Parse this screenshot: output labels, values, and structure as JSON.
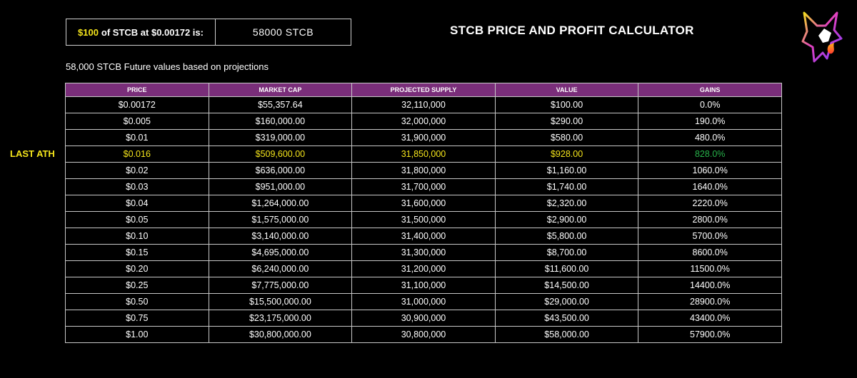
{
  "calculator": {
    "amount": "$100",
    "label_text": "of STCB at $0.00172 is:",
    "result": "58000 STCB"
  },
  "page_title": "STCB PRICE AND PROFIT CALCULATOR",
  "subtitle": "58,000 STCB Future values based on projections",
  "ath_label": "LAST ATH",
  "colors": {
    "header_bg": "#7a2e7a",
    "highlight": "#f5e51b",
    "gain": "#27b24a",
    "background": "#000000"
  },
  "logo": {
    "icon": "wolf-logo-icon"
  },
  "table": {
    "headers": [
      "PRICE",
      "MARKET CAP",
      "PROJECTED SUPPLY",
      "VALUE",
      "GAINS"
    ],
    "rows": [
      [
        "$0.00172",
        "$55,357.64",
        "32,110,000",
        "$100.00",
        "0.0%"
      ],
      [
        "$0.005",
        "$160,000.00",
        "32,000,000",
        "$290.00",
        "190.0%"
      ],
      [
        "$0.01",
        "$319,000.00",
        "31,900,000",
        "$580.00",
        "480.0%"
      ],
      [
        "$0.016",
        "$509,600.00",
        "31,850,000",
        "$928.00",
        "828.0%"
      ],
      [
        "$0.02",
        "$636,000.00",
        "31,800,000",
        "$1,160.00",
        "1060.0%"
      ],
      [
        "$0.03",
        "$951,000.00",
        "31,700,000",
        "$1,740.00",
        "1640.0%"
      ],
      [
        "$0.04",
        "$1,264,000.00",
        "31,600,000",
        "$2,320.00",
        "2220.0%"
      ],
      [
        "$0.05",
        "$1,575,000.00",
        "31,500,000",
        "$2,900.00",
        "2800.0%"
      ],
      [
        "$0.10",
        "$3,140,000.00",
        "31,400,000",
        "$5,800.00",
        "5700.0%"
      ],
      [
        "$0.15",
        "$4,695,000.00",
        "31,300,000",
        "$8,700.00",
        "8600.0%"
      ],
      [
        "$0.20",
        "$6,240,000.00",
        "31,200,000",
        "$11,600.00",
        "11500.0%"
      ],
      [
        "$0.25",
        "$7,775,000.00",
        "31,100,000",
        "$14,500.00",
        "14400.0%"
      ],
      [
        "$0.50",
        "$15,500,000.00",
        "31,000,000",
        "$29,000.00",
        "28900.0%"
      ],
      [
        "$0.75",
        "$23,175,000.00",
        "30,900,000",
        "$43,500.00",
        "43400.0%"
      ],
      [
        "$1.00",
        "$30,800,000.00",
        "30,800,000",
        "$58,000.00",
        "57900.0%"
      ]
    ]
  }
}
